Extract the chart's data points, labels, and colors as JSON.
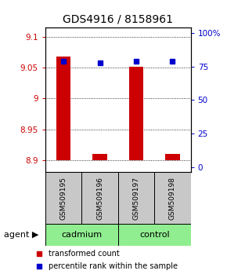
{
  "title": "GDS4916 / 8158961",
  "samples": [
    "GSM509195",
    "GSM509196",
    "GSM509197",
    "GSM509198"
  ],
  "transformed_counts": [
    9.068,
    8.91,
    9.052,
    8.91
  ],
  "percentile_ranks": [
    79,
    78,
    79,
    79
  ],
  "baseline": 8.9,
  "ylim_left": [
    8.88,
    9.115
  ],
  "ylim_right": [
    -4,
    104
  ],
  "yticks_left": [
    8.9,
    8.95,
    9.0,
    9.05,
    9.1
  ],
  "ytick_labels_left": [
    "8.9",
    "8.95",
    "9",
    "9.05",
    "9.1"
  ],
  "yticks_right": [
    0,
    25,
    50,
    75,
    100
  ],
  "ytick_labels_right": [
    "0",
    "25",
    "50",
    "75",
    "100%"
  ],
  "groups": [
    {
      "label": "cadmium",
      "samples": [
        0,
        1
      ],
      "color": "#90ee90"
    },
    {
      "label": "control",
      "samples": [
        2,
        3
      ],
      "color": "#90ee90"
    }
  ],
  "bar_color": "#cc0000",
  "marker_color": "#0000cc",
  "agent_label": "agent",
  "legend_items": [
    {
      "color": "#cc0000",
      "label": "transformed count"
    },
    {
      "color": "#0000cc",
      "label": "percentile rank within the sample"
    }
  ],
  "sample_box_color": "#c8c8c8",
  "title_fontsize": 10,
  "tick_fontsize": 7.5,
  "bar_width": 0.4
}
